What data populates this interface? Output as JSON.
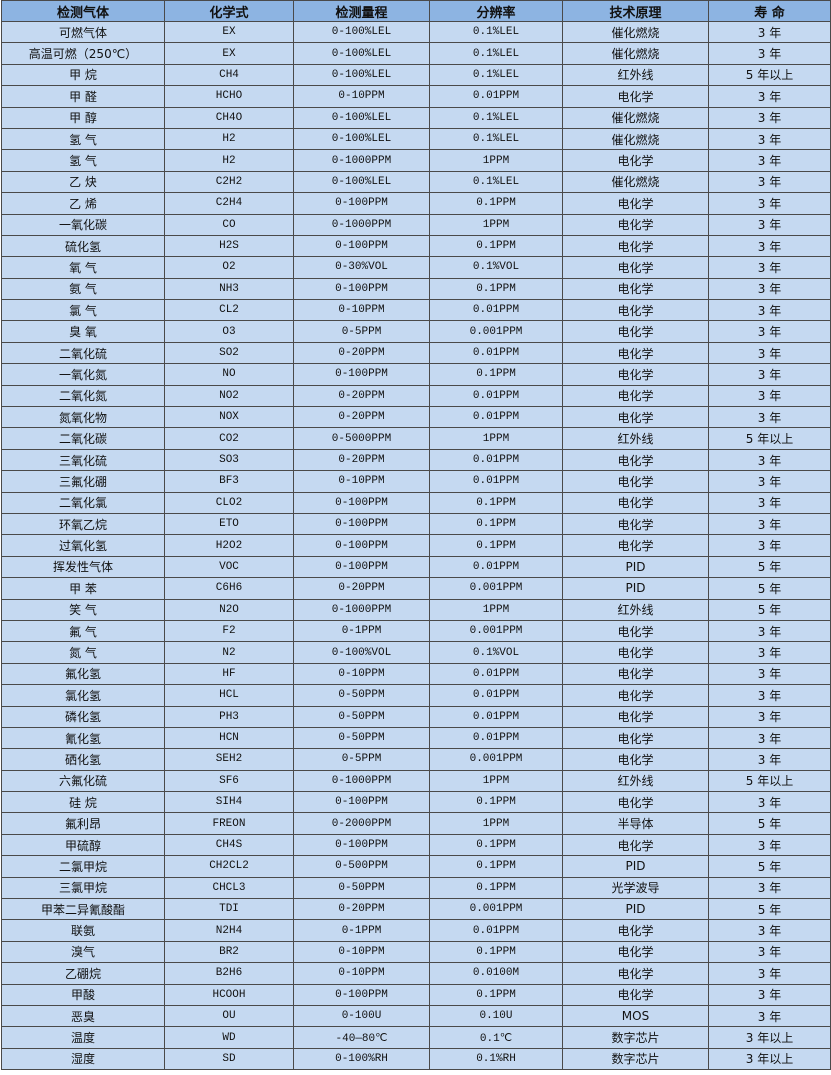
{
  "table": {
    "headers": [
      "检测气体",
      "化学式",
      "检测量程",
      "分辨率",
      "技术原理",
      "寿 命"
    ],
    "rows": [
      [
        "可燃气体",
        "EX",
        "0-100%LEL",
        "0.1%LEL",
        "催化燃烧",
        "3 年"
      ],
      [
        "高温可燃（250℃）",
        "EX",
        "0-100%LEL",
        "0.1%LEL",
        "催化燃烧",
        "3 年"
      ],
      [
        "甲 烷",
        "CH4",
        "0-100%LEL",
        "0.1%LEL",
        "红外线",
        "5 年以上"
      ],
      [
        "甲 醛",
        "HCHO",
        "0-10PPM",
        "0.01PPM",
        "电化学",
        "3 年"
      ],
      [
        "甲 醇",
        "CH4O",
        "0-100%LEL",
        "0.1%LEL",
        "催化燃烧",
        "3 年"
      ],
      [
        "氢 气",
        "H2",
        "0-100%LEL",
        "0.1%LEL",
        "催化燃烧",
        "3 年"
      ],
      [
        "氢 气",
        "H2",
        "0-1000PPM",
        "1PPM",
        "电化学",
        "3 年"
      ],
      [
        "乙 炔",
        "C2H2",
        "0-100%LEL",
        "0.1%LEL",
        "催化燃烧",
        "3 年"
      ],
      [
        "乙 烯",
        "C2H4",
        "0-100PPM",
        "0.1PPM",
        "电化学",
        "3 年"
      ],
      [
        "一氧化碳",
        "CO",
        "0-1000PPM",
        "1PPM",
        "电化学",
        "3 年"
      ],
      [
        "硫化氢",
        "H2S",
        "0-100PPM",
        "0.1PPM",
        "电化学",
        "3 年"
      ],
      [
        "氧 气",
        "O2",
        "0-30%VOL",
        "0.1%VOL",
        "电化学",
        "3 年"
      ],
      [
        "氨 气",
        "NH3",
        "0-100PPM",
        "0.1PPM",
        "电化学",
        "3 年"
      ],
      [
        "氯 气",
        "CL2",
        "0-10PPM",
        "0.01PPM",
        "电化学",
        "3 年"
      ],
      [
        "臭 氧",
        "O3",
        "0-5PPM",
        "0.001PPM",
        "电化学",
        "3 年"
      ],
      [
        "二氧化硫",
        "SO2",
        "0-20PPM",
        "0.01PPM",
        "电化学",
        "3 年"
      ],
      [
        "一氧化氮",
        "NO",
        "0-100PPM",
        "0.1PPM",
        "电化学",
        "3 年"
      ],
      [
        "二氧化氮",
        "NO2",
        "0-20PPM",
        "0.01PPM",
        "电化学",
        "3 年"
      ],
      [
        "氮氧化物",
        "NOX",
        "0-20PPM",
        "0.01PPM",
        "电化学",
        "3 年"
      ],
      [
        "二氧化碳",
        "CO2",
        "0-5000PPM",
        "1PPM",
        "红外线",
        "5 年以上"
      ],
      [
        "三氧化硫",
        "SO3",
        "0-20PPM",
        "0.01PPM",
        "电化学",
        "3 年"
      ],
      [
        "三氟化硼",
        "BF3",
        "0-10PPM",
        "0.01PPM",
        "电化学",
        "3 年"
      ],
      [
        "二氧化氯",
        "CLO2",
        "0-100PPM",
        "0.1PPM",
        "电化学",
        "3 年"
      ],
      [
        "环氧乙烷",
        "ETO",
        "0-100PPM",
        "0.1PPM",
        "电化学",
        "3 年"
      ],
      [
        "过氧化氢",
        "H2O2",
        "0-100PPM",
        "0.1PPM",
        "电化学",
        "3 年"
      ],
      [
        "挥发性气体",
        "VOC",
        "0-100PPM",
        "0.01PPM",
        "PID",
        "5 年"
      ],
      [
        "甲 苯",
        "C6H6",
        "0-20PPM",
        "0.001PPM",
        "PID",
        "5 年"
      ],
      [
        "笑 气",
        "N2O",
        "0-1000PPM",
        "1PPM",
        "红外线",
        "5 年"
      ],
      [
        "氟 气",
        "F2",
        "0-1PPM",
        "0.001PPM",
        "电化学",
        "3 年"
      ],
      [
        "氮 气",
        "N2",
        "0-100%VOL",
        "0.1%VOL",
        "电化学",
        "3 年"
      ],
      [
        "氟化氢",
        "HF",
        "0-10PPM",
        "0.01PPM",
        "电化学",
        "3 年"
      ],
      [
        "氯化氢",
        "HCL",
        "0-50PPM",
        "0.01PPM",
        "电化学",
        "3 年"
      ],
      [
        "磷化氢",
        "PH3",
        "0-50PPM",
        "0.01PPM",
        "电化学",
        "3 年"
      ],
      [
        "氰化氢",
        "HCN",
        "0-50PPM",
        "0.01PPM",
        "电化学",
        "3 年"
      ],
      [
        "硒化氢",
        "SEH2",
        "0-5PPM",
        "0.001PPM",
        "电化学",
        "3 年"
      ],
      [
        "六氟化硫",
        "SF6",
        "0-1000PPM",
        "1PPM",
        "红外线",
        "5 年以上"
      ],
      [
        "硅 烷",
        "SIH4",
        "0-100PPM",
        "0.1PPM",
        "电化学",
        "3 年"
      ],
      [
        "氟利昂",
        "FREON",
        "0-2000PPM",
        "1PPM",
        "半导体",
        "5 年"
      ],
      [
        "甲硫醇",
        "CH4S",
        "0-100PPM",
        "0.1PPM",
        "电化学",
        "3 年"
      ],
      [
        "二氯甲烷",
        "CH2CL2",
        "0-500PPM",
        "0.1PPM",
        "PID",
        "5 年"
      ],
      [
        "三氯甲烷",
        "CHCL3",
        "0-50PPM",
        "0.1PPM",
        "光学波导",
        "3 年"
      ],
      [
        "甲苯二异氰酸酯",
        "TDI",
        "0-20PPM",
        "0.001PPM",
        "PID",
        "5 年"
      ],
      [
        "联氨",
        "N2H4",
        "0-1PPM",
        "0.01PPM",
        "电化学",
        "3 年"
      ],
      [
        "溴气",
        "BR2",
        "0-10PPM",
        "0.1PPM",
        "电化学",
        "3 年"
      ],
      [
        "乙硼烷",
        "B2H6",
        "0-10PPM",
        "0.0100M",
        "电化学",
        "3 年"
      ],
      [
        "甲酸",
        "HCOOH",
        "0-100PPM",
        "0.1PPM",
        "电化学",
        "3 年"
      ],
      [
        "恶臭",
        "OU",
        "0-100U",
        "0.10U",
        "MOS",
        "3 年"
      ],
      [
        "温度",
        "WD",
        "-40—80℃",
        "0.1℃",
        "数字芯片",
        "3 年以上"
      ],
      [
        "湿度",
        "SD",
        "0-100%RH",
        "0.1%RH",
        "数字芯片",
        "3 年以上"
      ]
    ]
  },
  "colors": {
    "header_bg": "#8db4e2",
    "row_bg": "#c5d9f1",
    "border": "#4a4a4a"
  }
}
